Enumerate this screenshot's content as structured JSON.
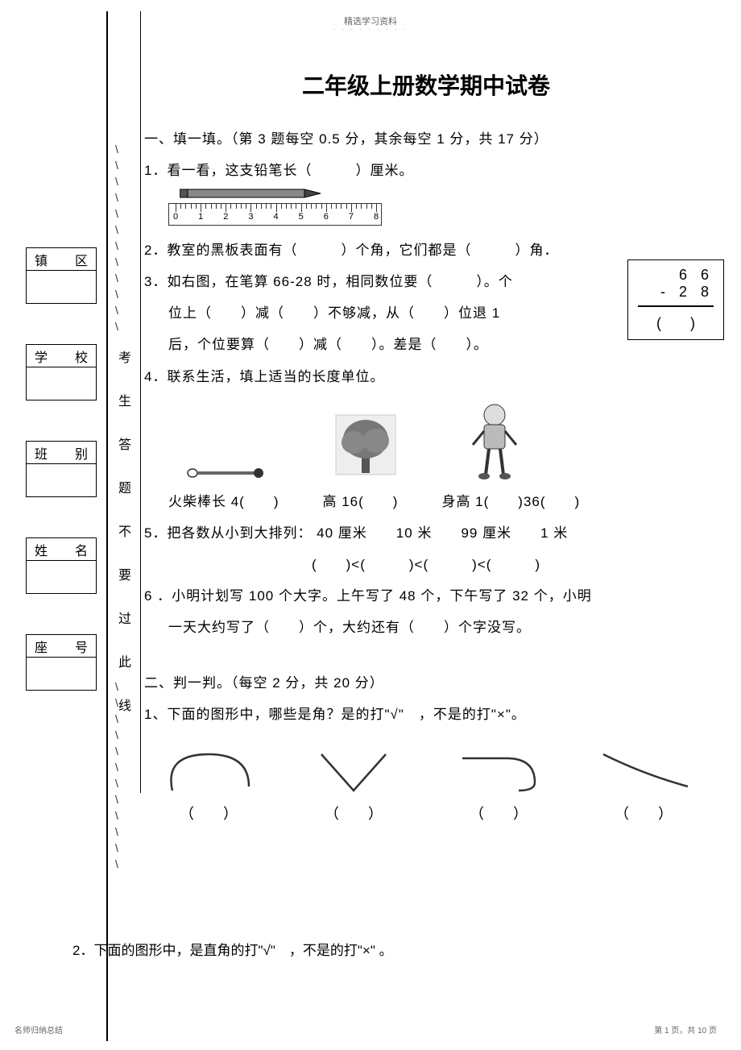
{
  "header": {
    "top": "精选学习资料",
    "dots": "· · · · · · · · ·"
  },
  "info_labels": {
    "zhen": "镇",
    "qu": "区",
    "xue": "学",
    "xiao": "校",
    "ban": "班",
    "bie": "别",
    "xing": "姓",
    "ming": "名",
    "zuo": "座",
    "hao": "号"
  },
  "vert": {
    "c1": "考",
    "c2": "生",
    "c3": "答",
    "c4": "题",
    "c5": "不",
    "c6": "要",
    "c7": "过",
    "c8": "此",
    "c9": "线"
  },
  "title": "二年级上册数学期中试卷",
  "sec1": {
    "head": "一、填一填。（第 3 题每空 0.5 分，其余每空 1 分，共 17 分）",
    "q1": "1．看一看，这支铅笔长（　　　）厘米。",
    "q2": "2．教室的黑板表面有（　　　）个角，它们都是（　　　）角．",
    "q3a": "3．如右图，在笔算 66‐28 时，相同数位要（　　　）。个",
    "q3b": "位上（　　）减（　　）不够减，从（　　）位退 1",
    "q3c": "后，个位要算（　　）减（　　）。差是（　　）。",
    "q4": "4．联系生活，填上适当的长度单位。",
    "q4a": "火柴棒长 4(　　)　　　高 16(　　)　　　身高 1(　　)36(　　)",
    "q5": "5．把各数从小到大排列： 40 厘米　　10 米　　99 厘米　　1 米",
    "q5a": "(　　)<(　　　)<(　　　)<(　　　)",
    "q6": "6 ．小明计划写 100 个大字。上午写了 48 个，下午写了 32 个，小明",
    "q6a": "一天大约写了（　　）个，大约还有（　　）个字没写。"
  },
  "calc": {
    "a": "6 6",
    "b": "‐ 2 8",
    "c": "(　　)"
  },
  "sec2": {
    "head": "二、判一判。（每空 2 分，共 20 分）",
    "q1": "1、下面的图形中，哪些是角？是的打\"√\"　，不是的打\"×\"。",
    "paren": "（　　）",
    "q2": "2．下面的图形中，是直角的打\"√\"　，不是的打\"×\" 。"
  },
  "ruler": {
    "nums": [
      "0",
      "1",
      "2",
      "3",
      "4",
      "5",
      "6",
      "7",
      "8"
    ]
  },
  "footer": {
    "left": "名师归纳总结",
    "right": "第 1 页，共 10 页"
  },
  "colors": {
    "black": "#000000",
    "gray": "#666666",
    "lgray": "#999999",
    "bg": "#ffffff"
  }
}
